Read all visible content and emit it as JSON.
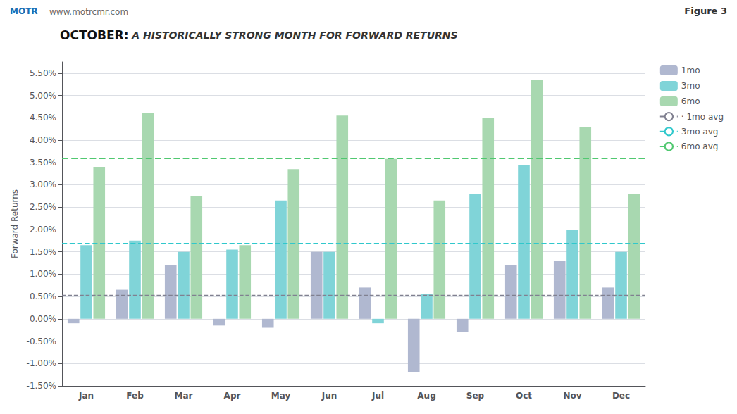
{
  "chart_data": {
    "type": "bar",
    "title": "OCTOBER:",
    "subtitle": " A HISTORICALLY STRONG MONTH FOR FORWARD RETURNS",
    "ylabel": "Forward Returns",
    "annotations": [
      "MOTR",
      "www.motrcmr.com",
      "Figure 3"
    ],
    "categories": [
      "Jan",
      "Feb",
      "Mar",
      "Apr",
      "May",
      "Jun",
      "Jul",
      "Aug",
      "Sep",
      "Oct",
      "Nov",
      "Dec"
    ],
    "series": [
      {
        "name": "1mo",
        "type": "bar",
        "color": "#b0b8d0",
        "values": [
          -0.1,
          0.65,
          1.2,
          -0.15,
          -0.2,
          1.5,
          0.7,
          -1.2,
          -0.3,
          1.2,
          1.3,
          0.7
        ]
      },
      {
        "name": "3mo",
        "type": "bar",
        "color": "#80d4d8",
        "values": [
          1.65,
          1.75,
          1.5,
          1.55,
          2.65,
          1.5,
          -0.1,
          0.55,
          2.8,
          3.45,
          2.0,
          1.5
        ]
      },
      {
        "name": "6mo",
        "type": "bar",
        "color": "#a8d8b0",
        "values": [
          3.4,
          4.6,
          2.75,
          1.65,
          3.35,
          4.55,
          3.58,
          2.65,
          4.5,
          5.35,
          4.3,
          2.8
        ]
      },
      {
        "name": "· 1mo avg",
        "type": "hline",
        "line_style": "dashed",
        "color": "#808090",
        "value": 0.53
      },
      {
        "name": "3mo avg",
        "type": "hline",
        "line_style": "dashed",
        "color": "#30c8cc",
        "value": 1.68
      },
      {
        "name": "6mo avg",
        "type": "hline",
        "line_style": "dashed",
        "color": "#50c870",
        "value": 3.6
      }
    ],
    "ylim": [
      -1.5,
      5.75
    ],
    "yticks": [
      {
        "value": -1.5,
        "label": "-1.50%"
      },
      {
        "value": -1.0,
        "label": "-1.00%"
      },
      {
        "value": -0.5,
        "label": "-0.50%"
      },
      {
        "value": 0.0,
        "label": "0.00%"
      },
      {
        "value": 0.5,
        "label": "0.50%"
      },
      {
        "value": 1.0,
        "label": "1.00%"
      },
      {
        "value": 1.5,
        "label": "1.50%"
      },
      {
        "value": 2.0,
        "label": "2.00%"
      },
      {
        "value": 2.5,
        "label": "2.50%"
      },
      {
        "value": 3.0,
        "label": "3.00%"
      },
      {
        "value": 3.5,
        "label": "3.50%"
      },
      {
        "value": 4.0,
        "label": "4.00%"
      },
      {
        "value": 4.5,
        "label": "4.50%"
      },
      {
        "value": 5.0,
        "label": "5.00%"
      },
      {
        "value": 5.5,
        "label": "5.50%"
      }
    ],
    "grid": true,
    "legend": "upper right"
  }
}
